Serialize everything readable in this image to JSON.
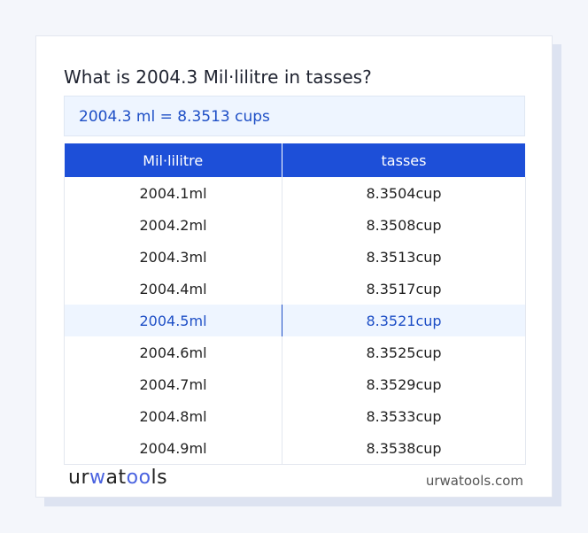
{
  "title": "What is 2004.3 Mil·lilitre in tasses?",
  "result": "2004.3 ml = 8.3513 cups",
  "table": {
    "headers": [
      "Mil·lilitre",
      "tasses"
    ],
    "rows": [
      [
        "2004.1ml",
        "8.3504cup"
      ],
      [
        "2004.2ml",
        "8.3508cup"
      ],
      [
        "2004.3ml",
        "8.3513cup"
      ],
      [
        "2004.4ml",
        "8.3517cup"
      ],
      [
        "2004.5ml",
        "8.3521cup"
      ],
      [
        "2004.6ml",
        "8.3525cup"
      ],
      [
        "2004.7ml",
        "8.3529cup"
      ],
      [
        "2004.8ml",
        "8.3533cup"
      ],
      [
        "2004.9ml",
        "8.3538cup"
      ]
    ],
    "highlighted_row": 4
  },
  "footer": {
    "logo": "urwatools",
    "site": "urwatools.com"
  },
  "colors": {
    "accent": "#1d4fd8",
    "highlight_bg": "#eef5ff"
  }
}
